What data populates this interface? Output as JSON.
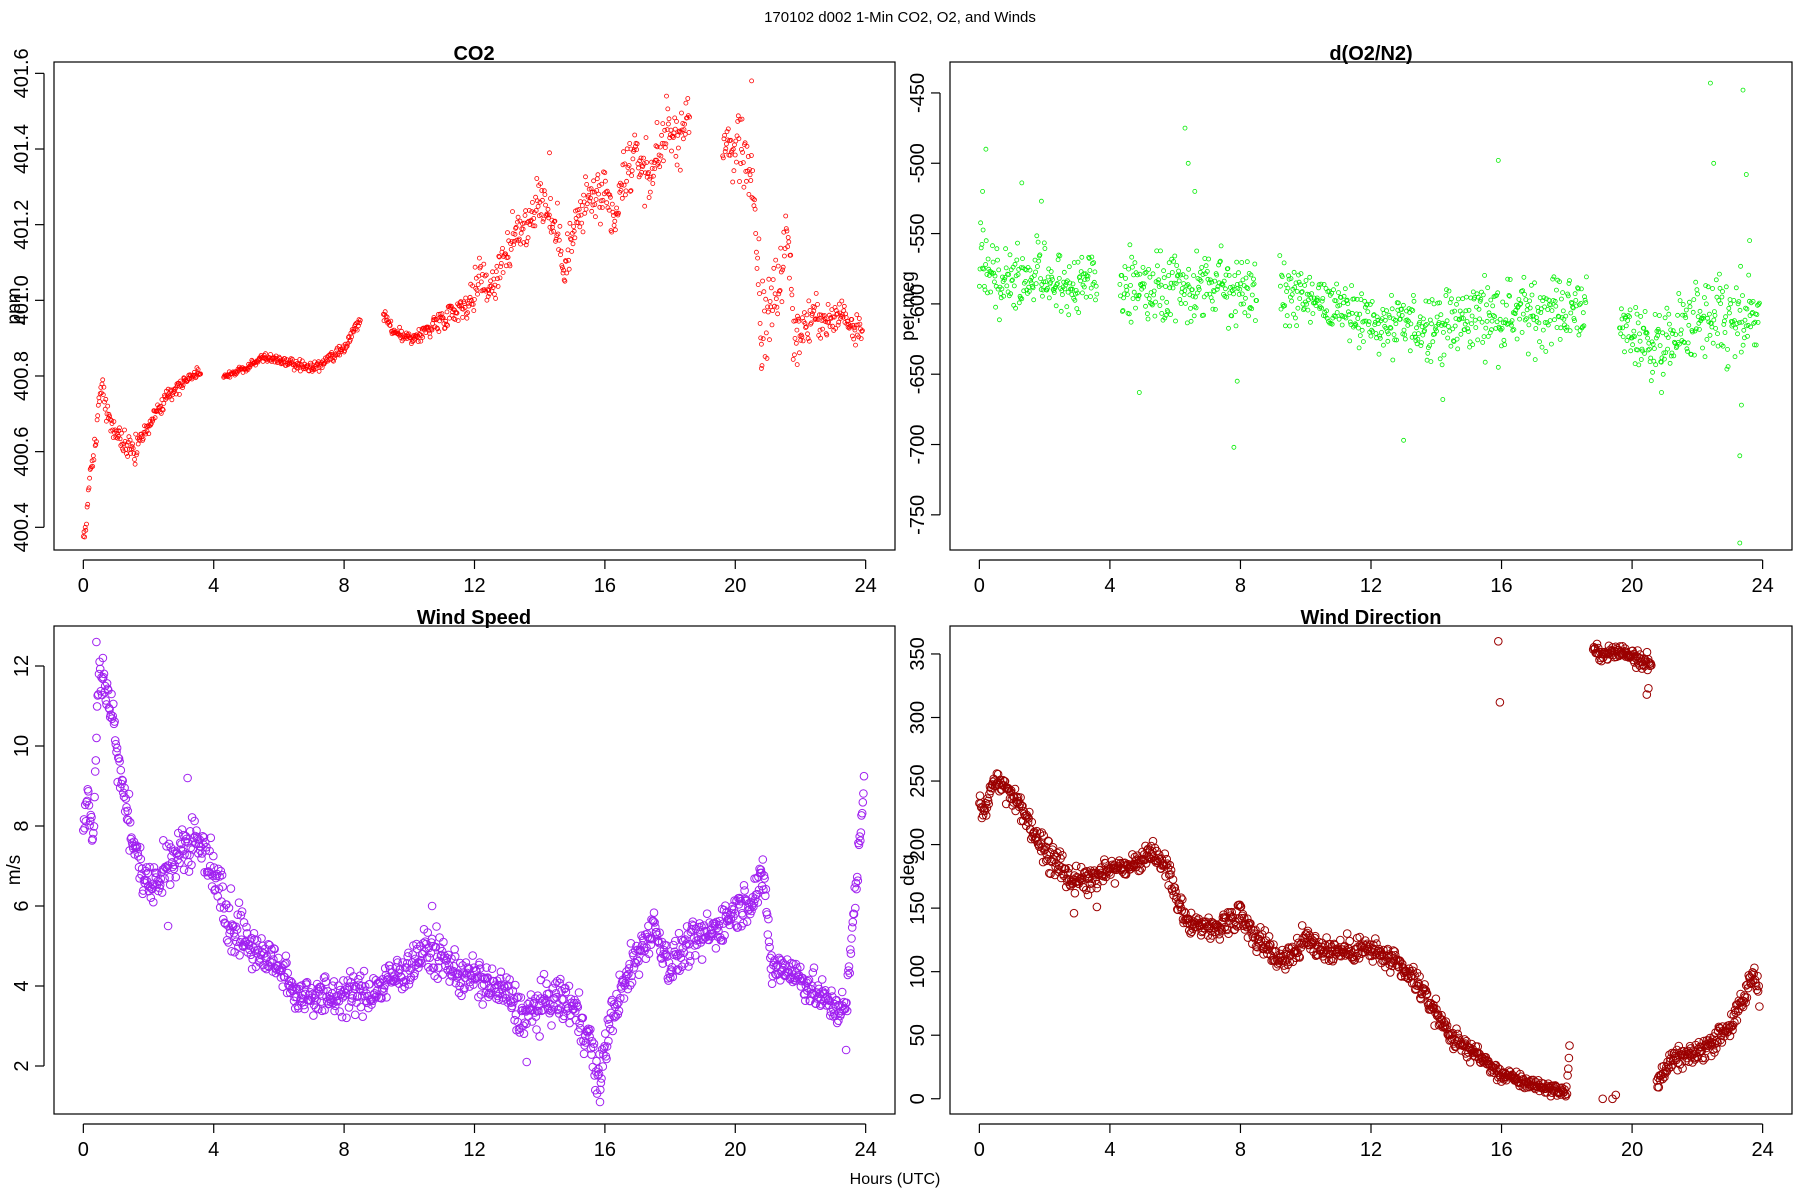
{
  "figure": {
    "suptitle": "170102   d002   1-Min CO2, O2, and Winds",
    "xlabel": "Hours (UTC)"
  },
  "chart_data": [
    {
      "type": "scatter",
      "title": "CO2",
      "ylabel": "ppm",
      "xlabel": "",
      "color": "#ff0000",
      "marker": "small-circle",
      "xlim": [
        -0.9,
        24.9
      ],
      "ylim": [
        400.34,
        401.63
      ],
      "xticks": [
        0,
        4,
        8,
        12,
        16,
        20,
        24
      ],
      "yticks": [
        400.4,
        400.6,
        400.8,
        401.0,
        401.2,
        401.4,
        401.6
      ],
      "ytick_labels": [
        "400.4",
        "400.6",
        "400.8",
        "401.0",
        "401.2",
        "401.4",
        "401.6"
      ],
      "gaps": [
        [
          3.6,
          4.3
        ],
        [
          8.5,
          9.2
        ],
        [
          18.6,
          19.6
        ]
      ],
      "trend": [
        [
          0.0,
          400.37
        ],
        [
          0.1,
          400.42
        ],
        [
          0.2,
          400.55
        ],
        [
          0.35,
          400.6
        ],
        [
          0.55,
          400.79
        ],
        [
          0.8,
          400.67
        ],
        [
          1.2,
          400.63
        ],
        [
          1.6,
          400.6
        ],
        [
          2.0,
          400.67
        ],
        [
          2.5,
          400.74
        ],
        [
          3.0,
          400.78
        ],
        [
          3.5,
          400.81
        ],
        [
          4.3,
          400.8
        ],
        [
          5.0,
          400.82
        ],
        [
          5.5,
          400.85
        ],
        [
          6.0,
          400.84
        ],
        [
          7.0,
          400.82
        ],
        [
          7.5,
          400.84
        ],
        [
          8.0,
          400.87
        ],
        [
          8.5,
          400.95
        ],
        [
          9.2,
          400.96
        ],
        [
          9.6,
          400.91
        ],
        [
          10.2,
          400.9
        ],
        [
          10.8,
          400.94
        ],
        [
          11.3,
          400.97
        ],
        [
          11.9,
          401.0
        ],
        [
          12.2,
          401.07
        ],
        [
          12.5,
          401.03
        ],
        [
          12.9,
          401.12
        ],
        [
          13.3,
          401.17
        ],
        [
          13.6,
          401.2
        ],
        [
          14.0,
          401.28
        ],
        [
          14.5,
          401.18
        ],
        [
          14.8,
          401.1
        ],
        [
          15.2,
          401.22
        ],
        [
          15.6,
          401.28
        ],
        [
          16.0,
          401.26
        ],
        [
          16.3,
          401.2
        ],
        [
          16.6,
          401.33
        ],
        [
          17.0,
          401.38
        ],
        [
          17.4,
          401.32
        ],
        [
          17.8,
          401.44
        ],
        [
          18.2,
          401.43
        ],
        [
          18.5,
          401.47
        ],
        [
          19.6,
          401.44
        ],
        [
          19.9,
          401.38
        ],
        [
          20.2,
          401.43
        ],
        [
          20.4,
          401.35
        ],
        [
          20.6,
          401.2
        ],
        [
          20.8,
          400.92
        ],
        [
          21.1,
          401.0
        ],
        [
          21.4,
          401.05
        ],
        [
          21.6,
          401.22
        ],
        [
          21.8,
          400.9
        ],
        [
          22.1,
          400.93
        ],
        [
          22.5,
          400.96
        ],
        [
          22.9,
          400.94
        ],
        [
          23.3,
          400.97
        ],
        [
          23.6,
          400.93
        ],
        [
          23.9,
          400.94
        ]
      ],
      "jitter": [
        [
          0,
          0.01
        ],
        [
          0.5,
          0.025
        ],
        [
          2.0,
          0.02
        ],
        [
          3.6,
          0.006
        ],
        [
          8.5,
          0.012
        ],
        [
          10.0,
          0.012
        ],
        [
          11.8,
          0.025
        ],
        [
          12.0,
          0.04
        ],
        [
          14.0,
          0.05
        ],
        [
          16.0,
          0.05
        ],
        [
          18.5,
          0.05
        ],
        [
          20.0,
          0.07
        ],
        [
          21.0,
          0.1
        ],
        [
          22.0,
          0.04
        ],
        [
          23.9,
          0.03
        ]
      ],
      "outliers": [
        [
          20.5,
          401.58
        ],
        [
          20.8,
          400.82
        ],
        [
          21.9,
          400.83
        ],
        [
          17.6,
          401.47
        ],
        [
          14.3,
          401.39
        ],
        [
          16.8,
          401.4
        ]
      ]
    },
    {
      "type": "scatter",
      "title": "d(O2/N2)",
      "ylabel": "per meg",
      "xlabel": "",
      "color": "#00ee00",
      "marker": "small-circle",
      "xlim": [
        -0.9,
        24.9
      ],
      "ylim": [
        -775,
        -428
      ],
      "xticks": [
        0,
        4,
        8,
        12,
        16,
        20,
        24
      ],
      "yticks": [
        -750,
        -700,
        -650,
        -600,
        -550,
        -500,
        -450
      ],
      "ytick_labels": [
        "-750",
        "-700",
        "-650",
        "-600",
        "-550",
        "-500",
        "-450"
      ],
      "gaps": [
        [
          3.6,
          4.3
        ],
        [
          8.5,
          9.2
        ],
        [
          18.6,
          19.6
        ]
      ],
      "trend": [
        [
          0.0,
          -565
        ],
        [
          0.7,
          -582
        ],
        [
          1.2,
          -587
        ],
        [
          1.8,
          -578
        ],
        [
          2.4,
          -582
        ],
        [
          3.0,
          -588
        ],
        [
          3.6,
          -580
        ],
        [
          4.3,
          -588
        ],
        [
          5.0,
          -588
        ],
        [
          5.5,
          -592
        ],
        [
          6.0,
          -592
        ],
        [
          6.5,
          -590
        ],
        [
          7.0,
          -588
        ],
        [
          7.5,
          -588
        ],
        [
          8.0,
          -588
        ],
        [
          8.5,
          -592
        ],
        [
          9.2,
          -590
        ],
        [
          10.0,
          -597
        ],
        [
          10.5,
          -600
        ],
        [
          11.0,
          -600
        ],
        [
          11.5,
          -604
        ],
        [
          12.0,
          -614
        ],
        [
          12.5,
          -617
        ],
        [
          13.0,
          -616
        ],
        [
          13.5,
          -614
        ],
        [
          14.0,
          -614
        ],
        [
          14.5,
          -615
        ],
        [
          15.0,
          -610
        ],
        [
          15.5,
          -605
        ],
        [
          16.0,
          -610
        ],
        [
          16.5,
          -605
        ],
        [
          17.0,
          -610
        ],
        [
          17.5,
          -602
        ],
        [
          18.0,
          -605
        ],
        [
          18.5,
          -600
        ],
        [
          19.6,
          -618
        ],
        [
          20.0,
          -620
        ],
        [
          20.5,
          -628
        ],
        [
          21.0,
          -630
        ],
        [
          21.5,
          -620
        ],
        [
          22.0,
          -612
        ],
        [
          22.5,
          -614
        ],
        [
          23.0,
          -615
        ],
        [
          23.5,
          -615
        ],
        [
          23.9,
          -605
        ]
      ],
      "jitter": [
        [
          0,
          16
        ],
        [
          3.6,
          16
        ],
        [
          4.3,
          16
        ],
        [
          8.5,
          18
        ],
        [
          9.2,
          14
        ],
        [
          12.0,
          16
        ],
        [
          16.0,
          18
        ],
        [
          18.5,
          16
        ],
        [
          19.6,
          14
        ],
        [
          22.0,
          20
        ],
        [
          23.9,
          25
        ]
      ],
      "outliers": [
        [
          0.2,
          -490
        ],
        [
          0.1,
          -520
        ],
        [
          1.3,
          -514
        ],
        [
          1.9,
          -527
        ],
        [
          6.3,
          -475
        ],
        [
          6.4,
          -500
        ],
        [
          6.6,
          -520
        ],
        [
          7.8,
          -702
        ],
        [
          7.9,
          -655
        ],
        [
          4.9,
          -663
        ],
        [
          13.0,
          -697
        ],
        [
          14.2,
          -668
        ],
        [
          15.9,
          -498
        ],
        [
          20.9,
          -663
        ],
        [
          22.4,
          -443
        ],
        [
          22.5,
          -500
        ],
        [
          23.3,
          -770
        ],
        [
          23.3,
          -708
        ],
        [
          23.4,
          -448
        ],
        [
          23.5,
          -508
        ],
        [
          23.6,
          -555
        ],
        [
          23.35,
          -672
        ]
      ]
    },
    {
      "type": "scatter",
      "title": "Wind Speed",
      "ylabel": "m/s",
      "xlabel": "",
      "color": "#a020f0",
      "marker": "circle",
      "xlim": [
        -0.9,
        24.9
      ],
      "ylim": [
        0.8,
        13.0
      ],
      "xticks": [
        0,
        4,
        8,
        12,
        16,
        20,
        24
      ],
      "yticks": [
        2,
        4,
        6,
        8,
        10,
        12
      ],
      "ytick_labels": [
        "2",
        "4",
        "6",
        "8",
        "10",
        "12"
      ],
      "gaps": [],
      "trend": [
        [
          0.0,
          8.0
        ],
        [
          0.15,
          9.0
        ],
        [
          0.3,
          7.3
        ],
        [
          0.45,
          11.8
        ],
        [
          0.6,
          11.6
        ],
        [
          0.8,
          11.2
        ],
        [
          1.0,
          10.0
        ],
        [
          1.3,
          8.5
        ],
        [
          1.6,
          7.3
        ],
        [
          2.0,
          6.4
        ],
        [
          2.5,
          7.0
        ],
        [
          3.0,
          7.5
        ],
        [
          3.5,
          7.6
        ],
        [
          4.0,
          7.0
        ],
        [
          4.4,
          5.8
        ],
        [
          5.0,
          5.1
        ],
        [
          5.5,
          4.8
        ],
        [
          6.0,
          4.5
        ],
        [
          6.5,
          3.8
        ],
        [
          7.0,
          3.8
        ],
        [
          7.5,
          3.7
        ],
        [
          8.0,
          3.8
        ],
        [
          8.5,
          3.8
        ],
        [
          9.0,
          3.9
        ],
        [
          9.5,
          4.2
        ],
        [
          10.0,
          4.5
        ],
        [
          10.5,
          4.9
        ],
        [
          11.0,
          4.7
        ],
        [
          11.5,
          4.3
        ],
        [
          12.0,
          4.2
        ],
        [
          12.5,
          4.0
        ],
        [
          13.0,
          3.8
        ],
        [
          13.5,
          3.2
        ],
        [
          14.0,
          3.5
        ],
        [
          14.5,
          3.7
        ],
        [
          15.0,
          3.5
        ],
        [
          15.5,
          2.8
        ],
        [
          15.8,
          1.5
        ],
        [
          16.0,
          2.5
        ],
        [
          16.3,
          3.5
        ],
        [
          16.6,
          4.0
        ],
        [
          17.0,
          4.8
        ],
        [
          17.5,
          5.5
        ],
        [
          18.0,
          4.5
        ],
        [
          18.5,
          5.0
        ],
        [
          19.0,
          5.2
        ],
        [
          19.5,
          5.5
        ],
        [
          20.0,
          5.9
        ],
        [
          20.5,
          6.2
        ],
        [
          20.9,
          6.7
        ],
        [
          21.1,
          4.4
        ],
        [
          21.5,
          4.5
        ],
        [
          22.0,
          4.2
        ],
        [
          22.5,
          3.8
        ],
        [
          23.0,
          3.5
        ],
        [
          23.4,
          3.4
        ],
        [
          23.7,
          6.5
        ],
        [
          23.95,
          9.0
        ]
      ],
      "jitter": [
        [
          0,
          0.35
        ],
        [
          4.0,
          0.5
        ],
        [
          6.0,
          0.35
        ],
        [
          15.0,
          0.4
        ],
        [
          20.0,
          0.35
        ],
        [
          23.5,
          0.3
        ],
        [
          23.95,
          0.3
        ]
      ],
      "outliers": [
        [
          0.4,
          12.6
        ],
        [
          0.6,
          12.2
        ],
        [
          3.2,
          9.2
        ],
        [
          2.6,
          5.5
        ],
        [
          13.6,
          2.1
        ],
        [
          15.85,
          1.1
        ],
        [
          23.4,
          2.4
        ],
        [
          10.7,
          6.0
        ]
      ]
    },
    {
      "type": "scatter",
      "title": "Wind Direction",
      "ylabel": "deg",
      "xlabel": "",
      "color": "#9b0000",
      "marker": "circle",
      "xlim": [
        -0.9,
        24.9
      ],
      "ylim": [
        -12,
        372
      ],
      "xticks": [
        0,
        4,
        8,
        12,
        16,
        20,
        24
      ],
      "yticks": [
        0,
        50,
        100,
        150,
        200,
        250,
        300,
        350
      ],
      "ytick_labels": [
        "0",
        "50",
        "100",
        "150",
        "200",
        "250",
        "300",
        "350"
      ],
      "gaps": [
        [
          18.1,
          18.8
        ],
        [
          20.6,
          20.75
        ]
      ],
      "trend": [
        [
          0.0,
          232
        ],
        [
          0.2,
          225
        ],
        [
          0.4,
          250
        ],
        [
          0.8,
          244
        ],
        [
          1.2,
          232
        ],
        [
          1.6,
          212
        ],
        [
          2.0,
          196
        ],
        [
          2.4,
          184
        ],
        [
          2.8,
          172
        ],
        [
          3.2,
          172
        ],
        [
          3.6,
          178
        ],
        [
          4.0,
          182
        ],
        [
          4.5,
          183
        ],
        [
          5.0,
          188
        ],
        [
          5.4,
          192
        ],
        [
          5.7,
          185
        ],
        [
          6.0,
          162
        ],
        [
          6.3,
          140
        ],
        [
          6.8,
          137
        ],
        [
          7.2,
          133
        ],
        [
          7.6,
          140
        ],
        [
          8.0,
          147
        ],
        [
          8.4,
          130
        ],
        [
          8.8,
          120
        ],
        [
          9.2,
          110
        ],
        [
          9.6,
          115
        ],
        [
          10.0,
          125
        ],
        [
          10.4,
          120
        ],
        [
          10.8,
          116
        ],
        [
          11.3,
          117
        ],
        [
          11.8,
          118
        ],
        [
          12.2,
          115
        ],
        [
          12.6,
          108
        ],
        [
          13.0,
          100
        ],
        [
          13.4,
          92
        ],
        [
          13.8,
          75
        ],
        [
          14.2,
          60
        ],
        [
          14.6,
          44
        ],
        [
          15.0,
          40
        ],
        [
          15.4,
          32
        ],
        [
          15.8,
          22
        ],
        [
          16.2,
          17
        ],
        [
          16.6,
          14
        ],
        [
          17.0,
          11
        ],
        [
          17.5,
          8
        ],
        [
          18.0,
          5
        ],
        [
          18.8,
          352
        ],
        [
          19.2,
          350
        ],
        [
          19.6,
          352
        ],
        [
          20.0,
          350
        ],
        [
          20.3,
          346
        ],
        [
          20.6,
          340
        ],
        [
          20.75,
          10
        ],
        [
          21.0,
          25
        ],
        [
          21.4,
          32
        ],
        [
          21.8,
          33
        ],
        [
          22.2,
          40
        ],
        [
          22.6,
          48
        ],
        [
          23.0,
          58
        ],
        [
          23.4,
          75
        ],
        [
          23.7,
          100
        ],
        [
          23.9,
          85
        ]
      ],
      "jitter": [
        [
          0,
          6
        ],
        [
          2.0,
          8
        ],
        [
          6.0,
          6
        ],
        [
          10.0,
          8
        ],
        [
          14.0,
          6
        ],
        [
          18.0,
          3
        ],
        [
          18.8,
          4
        ],
        [
          20.6,
          6
        ],
        [
          20.75,
          5
        ],
        [
          23.9,
          8
        ]
      ],
      "outliers": [
        [
          15.9,
          360
        ],
        [
          15.95,
          312
        ],
        [
          19.1,
          0
        ],
        [
          19.4,
          0
        ],
        [
          19.5,
          3
        ],
        [
          20.45,
          318
        ],
        [
          20.5,
          323
        ],
        [
          2.9,
          146
        ],
        [
          3.6,
          151
        ]
      ]
    }
  ]
}
